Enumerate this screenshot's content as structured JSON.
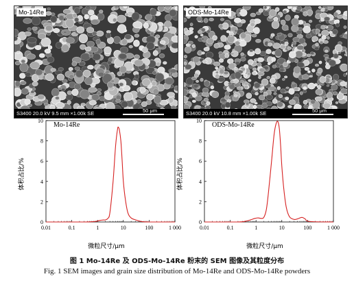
{
  "panels": [
    {
      "sem": {
        "label": "Mo-14Re",
        "info": "S3400  20.0 kV  9.5 mm  ×1.00k  SE",
        "scale": "50 μm"
      },
      "plot": {
        "label": "Mo-14Re",
        "ylabel": "体积占比/%",
        "xlabel": "微粒尺寸/μm"
      }
    },
    {
      "sem": {
        "label": "ODS-Mo-14Re",
        "info": "S3400  20.0 kV  10.8 mm  ×1.00k  SE",
        "scale": "50 μm"
      },
      "plot": {
        "label": "ODS-Mo-14Re",
        "ylabel": "体积占比/%",
        "xlabel": "微粒尺寸/μm"
      }
    }
  ],
  "caption": {
    "cn": "图 1    Mo-14Re 及 ODS-Mo-14Re 粉末的 SEM 图像及其粒度分布",
    "en": "Fig. 1    SEM images and grain size distribution of Mo-14Re and ODS-Mo-14Re powders"
  },
  "colors": {
    "curve": "#d62020"
  },
  "chart_data": [
    {
      "type": "line",
      "xscale": "log",
      "xlim": [
        0.01,
        1000
      ],
      "ylim": [
        0,
        10
      ],
      "x_ticks": [
        "0.01",
        "0.1",
        "1",
        "10",
        "100",
        "1 000"
      ],
      "y_ticks": [
        "0",
        "2",
        "4",
        "6",
        "8",
        "10"
      ],
      "series": [
        {
          "x": [
            0.01,
            0.3,
            0.8,
            1.2,
            1.7,
            2.0,
            2.5,
            3.0,
            4.0,
            5.0,
            6.0,
            6.5,
            7.0,
            8.0,
            9.0,
            10,
            12,
            15,
            20,
            30,
            50,
            100,
            1000
          ],
          "y": [
            0,
            0,
            0.05,
            0.15,
            0.2,
            0.2,
            0.35,
            0.9,
            4.0,
            7.5,
            9.2,
            9.3,
            9.1,
            8.0,
            6.0,
            4.0,
            2.2,
            0.9,
            0.4,
            0.2,
            0.05,
            0,
            0
          ]
        }
      ]
    },
    {
      "type": "line",
      "xscale": "log",
      "xlim": [
        0.01,
        1000
      ],
      "ylim": [
        0,
        10
      ],
      "x_ticks": [
        "0.01",
        "0.1",
        "1",
        "10",
        "100",
        "1 000"
      ],
      "y_ticks": [
        "0",
        "2",
        "4",
        "6",
        "8",
        "10"
      ],
      "series": [
        {
          "x": [
            0.01,
            0.2,
            0.4,
            0.6,
            0.9,
            1.2,
            1.6,
            2.0,
            2.5,
            3.0,
            4.0,
            5.0,
            6.0,
            7.0,
            8.0,
            9.0,
            10,
            12,
            15,
            20,
            30,
            40,
            60,
            80,
            120,
            1000
          ],
          "y": [
            0,
            0,
            0.08,
            0.2,
            0.35,
            0.4,
            0.35,
            0.45,
            1.2,
            2.8,
            6.0,
            8.6,
            9.7,
            9.9,
            9.2,
            7.5,
            5.5,
            3.2,
            1.4,
            0.5,
            0.25,
            0.3,
            0.45,
            0.3,
            0.05,
            0
          ]
        }
      ]
    }
  ]
}
